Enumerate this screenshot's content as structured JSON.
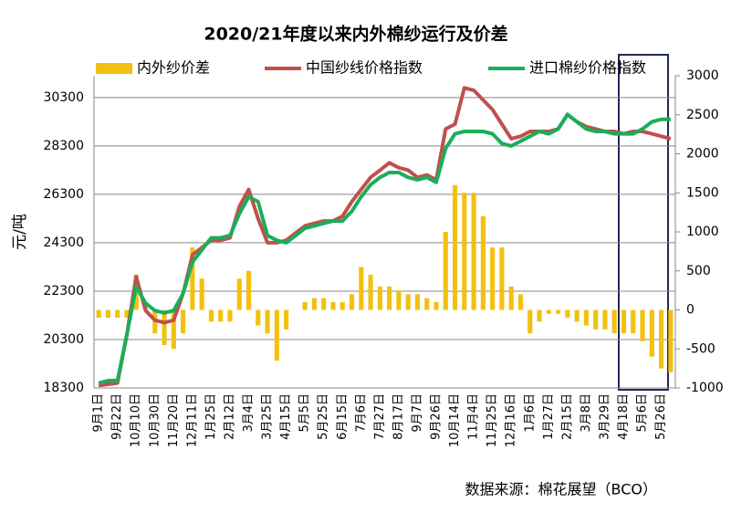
{
  "chart_data": {
    "type": "bar-line",
    "title": "2020/21年度以来内外棉纱运行及价差",
    "y_label": "元/吨",
    "source": "数据来源：棉花展望（BCO）",
    "legend": "top",
    "grid": true,
    "categories": [
      "9月1日",
      null,
      "9月22日",
      null,
      "10月10日",
      null,
      "10月30日",
      null,
      "11月20日",
      null,
      "12月11日",
      null,
      "1月25日",
      null,
      "2月12日",
      null,
      "3月4日",
      null,
      "3月25日",
      null,
      "4月15日",
      null,
      "5月5日",
      null,
      "5月25日",
      null,
      "6月15日",
      null,
      "7月6日",
      null,
      "7月27日",
      null,
      "8月17日",
      null,
      "9月7日",
      null,
      "9月26日",
      null,
      "10月14日",
      null,
      "11月4日",
      null,
      "11月25日",
      null,
      "12月16日",
      null,
      "1月6日",
      null,
      "1月27日",
      null,
      "2月15日",
      null,
      "3月8日",
      null,
      "3月29日",
      null,
      "4月18日",
      null,
      "5月6日",
      null,
      "5月26日",
      null
    ],
    "ylim": [
      18300,
      31200
    ],
    "yticks": [
      18300,
      20300,
      22300,
      24300,
      26300,
      28300,
      30300
    ],
    "y2lim": [
      -1000,
      3000
    ],
    "y2ticks": [
      -1000,
      -500,
      0,
      500,
      1000,
      1500,
      2000,
      2500,
      3000
    ],
    "series": [
      {
        "name": "内外纱价差",
        "type": "bar",
        "axis": "y2",
        "color": "#f2c10f",
        "values": [
          -100,
          -100,
          -100,
          -100,
          450,
          100,
          -300,
          -450,
          -500,
          -300,
          800,
          400,
          -150,
          -150,
          -150,
          400,
          500,
          -200,
          -300,
          -650,
          -250,
          0,
          100,
          150,
          150,
          100,
          100,
          200,
          550,
          450,
          300,
          300,
          250,
          200,
          200,
          150,
          100,
          1000,
          1600,
          1500,
          1500,
          1200,
          800,
          800,
          300,
          200,
          -300,
          -150,
          -50,
          -50,
          -100,
          -150,
          -200,
          -250,
          -250,
          -300,
          -300,
          -300,
          -400,
          -600,
          -750,
          -800
        ]
      },
      {
        "name": "中国纱线价格指数",
        "type": "line",
        "color": "#c0504d",
        "values": [
          18400,
          18450,
          18500,
          20500,
          22900,
          21500,
          21100,
          21000,
          21100,
          22200,
          23800,
          24100,
          24400,
          24400,
          24500,
          25800,
          26500,
          25300,
          24300,
          24300,
          24400,
          24700,
          25000,
          25100,
          25200,
          25200,
          25400,
          26000,
          26500,
          27000,
          27300,
          27600,
          27400,
          27300,
          27000,
          27100,
          26900,
          29000,
          29200,
          30700,
          30600,
          30200,
          29800,
          29200,
          28600,
          28700,
          28900,
          28900,
          28900,
          29000,
          29600,
          29300,
          29100,
          29000,
          28900,
          28900,
          28800,
          28900,
          28900,
          28800,
          28700,
          28600
        ]
      },
      {
        "name": "进口棉纱价格指数",
        "type": "line",
        "color": "#1aae5a",
        "values": [
          18500,
          18600,
          18600,
          20500,
          22500,
          21800,
          21500,
          21400,
          21500,
          22200,
          23500,
          24000,
          24500,
          24500,
          24600,
          25500,
          26200,
          26000,
          24600,
          24400,
          24300,
          24600,
          24900,
          25000,
          25100,
          25200,
          25200,
          25600,
          26200,
          26700,
          27000,
          27200,
          27200,
          27000,
          26900,
          27000,
          26800,
          28200,
          28800,
          28900,
          28900,
          28900,
          28800,
          28400,
          28300,
          28500,
          28700,
          28900,
          28800,
          29000,
          29600,
          29300,
          29000,
          28900,
          28900,
          28800,
          28800,
          28800,
          29000,
          29300,
          29400,
          29400
        ]
      }
    ]
  }
}
